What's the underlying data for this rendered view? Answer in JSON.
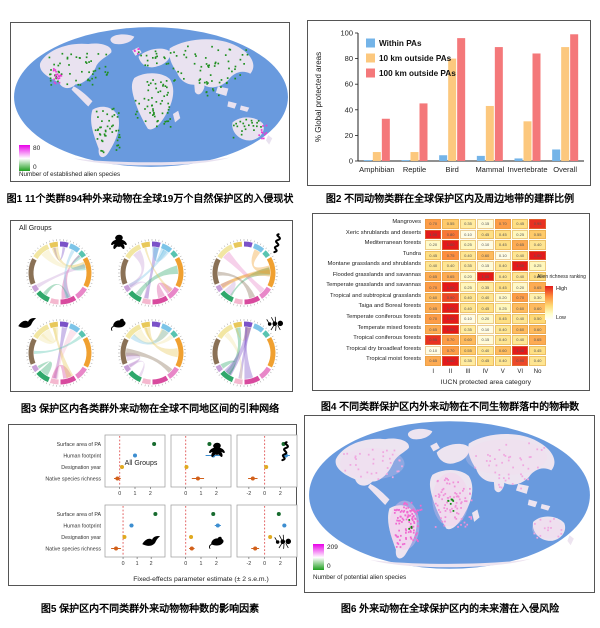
{
  "captions": {
    "fig1": "图1  11个类群894种外来动物在全球19万个自然保护区的入侵现状",
    "fig2": "图2  不同动物类群在全球保护区内及周边地带的建群比例",
    "fig3": "图3  保护区内各类群外来动物在全球不同地区间的引种网络",
    "fig4": "图4  不同类群保护区内外来动物在不同生物群落中的物种数",
    "fig5": "图5  保护区内不同类群外来动物物种数的影响因素",
    "fig6": "图6  外来动物在全球保护区内的未来潜在入侵风险"
  },
  "fig1": {
    "colorbar_max": "80",
    "colorbar_min": "0",
    "max_color": "#e800e8",
    "min_color": "#1f9f1f",
    "label": "Number of established alien species"
  },
  "fig3": {
    "panel_label": "All Groups"
  },
  "fig6": {
    "colorbar_max": "209",
    "colorbar_min": "0",
    "max_color": "#e800e8",
    "min_color": "#1f9f1f",
    "label": "Number of potential alien species"
  },
  "chart_data": [
    {
      "id": "establishment-by-taxon",
      "type": "bar",
      "ylabel": "% Global protected areas",
      "ylim": [
        0,
        100
      ],
      "yticks": [
        0,
        20,
        40,
        60,
        80,
        100
      ],
      "categories": [
        "Amphibian",
        "Reptile",
        "Bird",
        "Mammal",
        "Invertebrate",
        "Overall"
      ],
      "series": [
        {
          "name": "Within PAs",
          "color": "#74b4e8",
          "values": [
            0.7,
            0.7,
            4.5,
            4,
            2,
            9
          ]
        },
        {
          "name": "10 km outside PAs",
          "color": "#fcc87e",
          "values": [
            7,
            7,
            80,
            43,
            31,
            89
          ]
        },
        {
          "name": "100 km outside PAs",
          "color": "#f4787a",
          "values": [
            33,
            45,
            96,
            89,
            84,
            99
          ]
        }
      ],
      "legend_position": "top-left",
      "grid": false
    },
    {
      "id": "alien-richness-by-biome",
      "type": "heatmap",
      "xlabel": "IUCN protected area category",
      "legend_title": "Alien richness ranking",
      "legend_high": "High",
      "legend_low": "Low",
      "cols": [
        "I",
        "II",
        "III",
        "IV",
        "V",
        "VI",
        "No"
      ],
      "rows": [
        "Mangroves",
        "Xeric shrublands and deserts",
        "Mediterranean forests",
        "Tundra",
        "Montane grasslands and shrublands",
        "Flooded grasslands and savannas",
        "Temperate grasslands and savannas",
        "Tropical and subtropical grasslands",
        "Taiga and Boreal forests",
        "Temperate coniferous forests",
        "Temperate mixed forests",
        "Tropical coniferous forests",
        "Tropical dry broadleaf forests",
        "Tropical moist forests"
      ],
      "values": [
        [
          0.7,
          0.55,
          0.35,
          0.15,
          0.7,
          0.45,
          0.95
        ],
        [
          1.0,
          0.8,
          0.1,
          0.45,
          0.45,
          0.25,
          0.55
        ],
        [
          0.2,
          1.0,
          0.25,
          0.1,
          0.45,
          0.65,
          0.4
        ],
        [
          0.45,
          0.75,
          0.4,
          0.6,
          0.1,
          0.4,
          1.0
        ],
        [
          0.4,
          0.4,
          0.35,
          0.15,
          0.4,
          1.0,
          0.25
        ],
        [
          0.65,
          0.65,
          0.2,
          1.0,
          0.4,
          0.4,
          0.45
        ],
        [
          0.7,
          1.0,
          0.25,
          0.35,
          0.45,
          0.2,
          0.65
        ],
        [
          0.6,
          0.9,
          0.4,
          0.4,
          0.2,
          0.7,
          0.3
        ],
        [
          0.65,
          1.0,
          0.4,
          0.45,
          0.25,
          0.6,
          0.6
        ],
        [
          0.7,
          1.0,
          0.1,
          0.2,
          0.45,
          0.4,
          0.5
        ],
        [
          0.65,
          1.0,
          0.35,
          0.1,
          0.4,
          0.6,
          0.6
        ],
        [
          0.95,
          0.7,
          0.6,
          0.15,
          0.4,
          0.4,
          0.65
        ],
        [
          0.1,
          0.7,
          0.55,
          0.4,
          0.6,
          1.0,
          0.45
        ],
        [
          0.65,
          1.0,
          0.35,
          0.45,
          0.4,
          0.9,
          0.4
        ]
      ]
    },
    {
      "id": "drivers-of-alien-richness",
      "type": "scatter",
      "xlabel": "Fixed-effects parameter estimate (± 2 s.e.m.)",
      "predictors": [
        "Surface area of PA",
        "Human footprint",
        "Designation year",
        "Native species richness"
      ],
      "colors": [
        "#176b2e",
        "#3d8ed0",
        "#e0a91f",
        "#d2601a"
      ],
      "panels": [
        {
          "label": "All Groups",
          "icon": "none",
          "xlim": [
            -0.7,
            2.7
          ],
          "xticks": [
            0,
            1,
            2
          ],
          "estimates": [
            2.25,
            1.0,
            0.15,
            -0.15
          ],
          "errors": [
            0.08,
            0.12,
            0.1,
            0.22
          ]
        },
        {
          "label": "Amphibians",
          "icon": "frog-silhouette",
          "xlim": [
            -0.7,
            2.7
          ],
          "xticks": [
            0,
            1,
            2
          ],
          "estimates": [
            1.55,
            1.8,
            0.05,
            0.8
          ],
          "errors": [
            0.12,
            0.5,
            0.12,
            0.4
          ]
        },
        {
          "label": "Reptiles",
          "icon": "snake-silhouette",
          "xlim": [
            -3,
            3.6
          ],
          "xticks": [
            -2,
            0,
            2
          ],
          "estimates": [
            2.4,
            2.7,
            0.2,
            -1.5
          ],
          "errors": [
            0.2,
            0.5,
            0.2,
            0.6
          ]
        },
        {
          "label": "Birds",
          "icon": "bird-silhouette",
          "xlim": [
            -1.0,
            2.7
          ],
          "xticks": [
            0,
            1,
            2
          ],
          "estimates": [
            2.3,
            0.6,
            0.1,
            -0.5
          ],
          "errors": [
            0.08,
            0.15,
            0.1,
            0.35
          ]
        },
        {
          "label": "Mammals",
          "icon": "mouse-silhouette",
          "xlim": [
            -0.7,
            2.7
          ],
          "xticks": [
            0,
            1,
            2
          ],
          "estimates": [
            1.8,
            2.1,
            0.35,
            0.4
          ],
          "errors": [
            0.1,
            0.2,
            0.12,
            0.18
          ]
        },
        {
          "label": "Invertebrates",
          "icon": "ant-silhouette",
          "xlim": [
            -3,
            3.6
          ],
          "xticks": [
            -2,
            0,
            2
          ],
          "estimates": [
            1.8,
            2.5,
            0.7,
            -1.2
          ],
          "errors": [
            0.2,
            0.25,
            0.2,
            0.5
          ]
        }
      ]
    }
  ]
}
